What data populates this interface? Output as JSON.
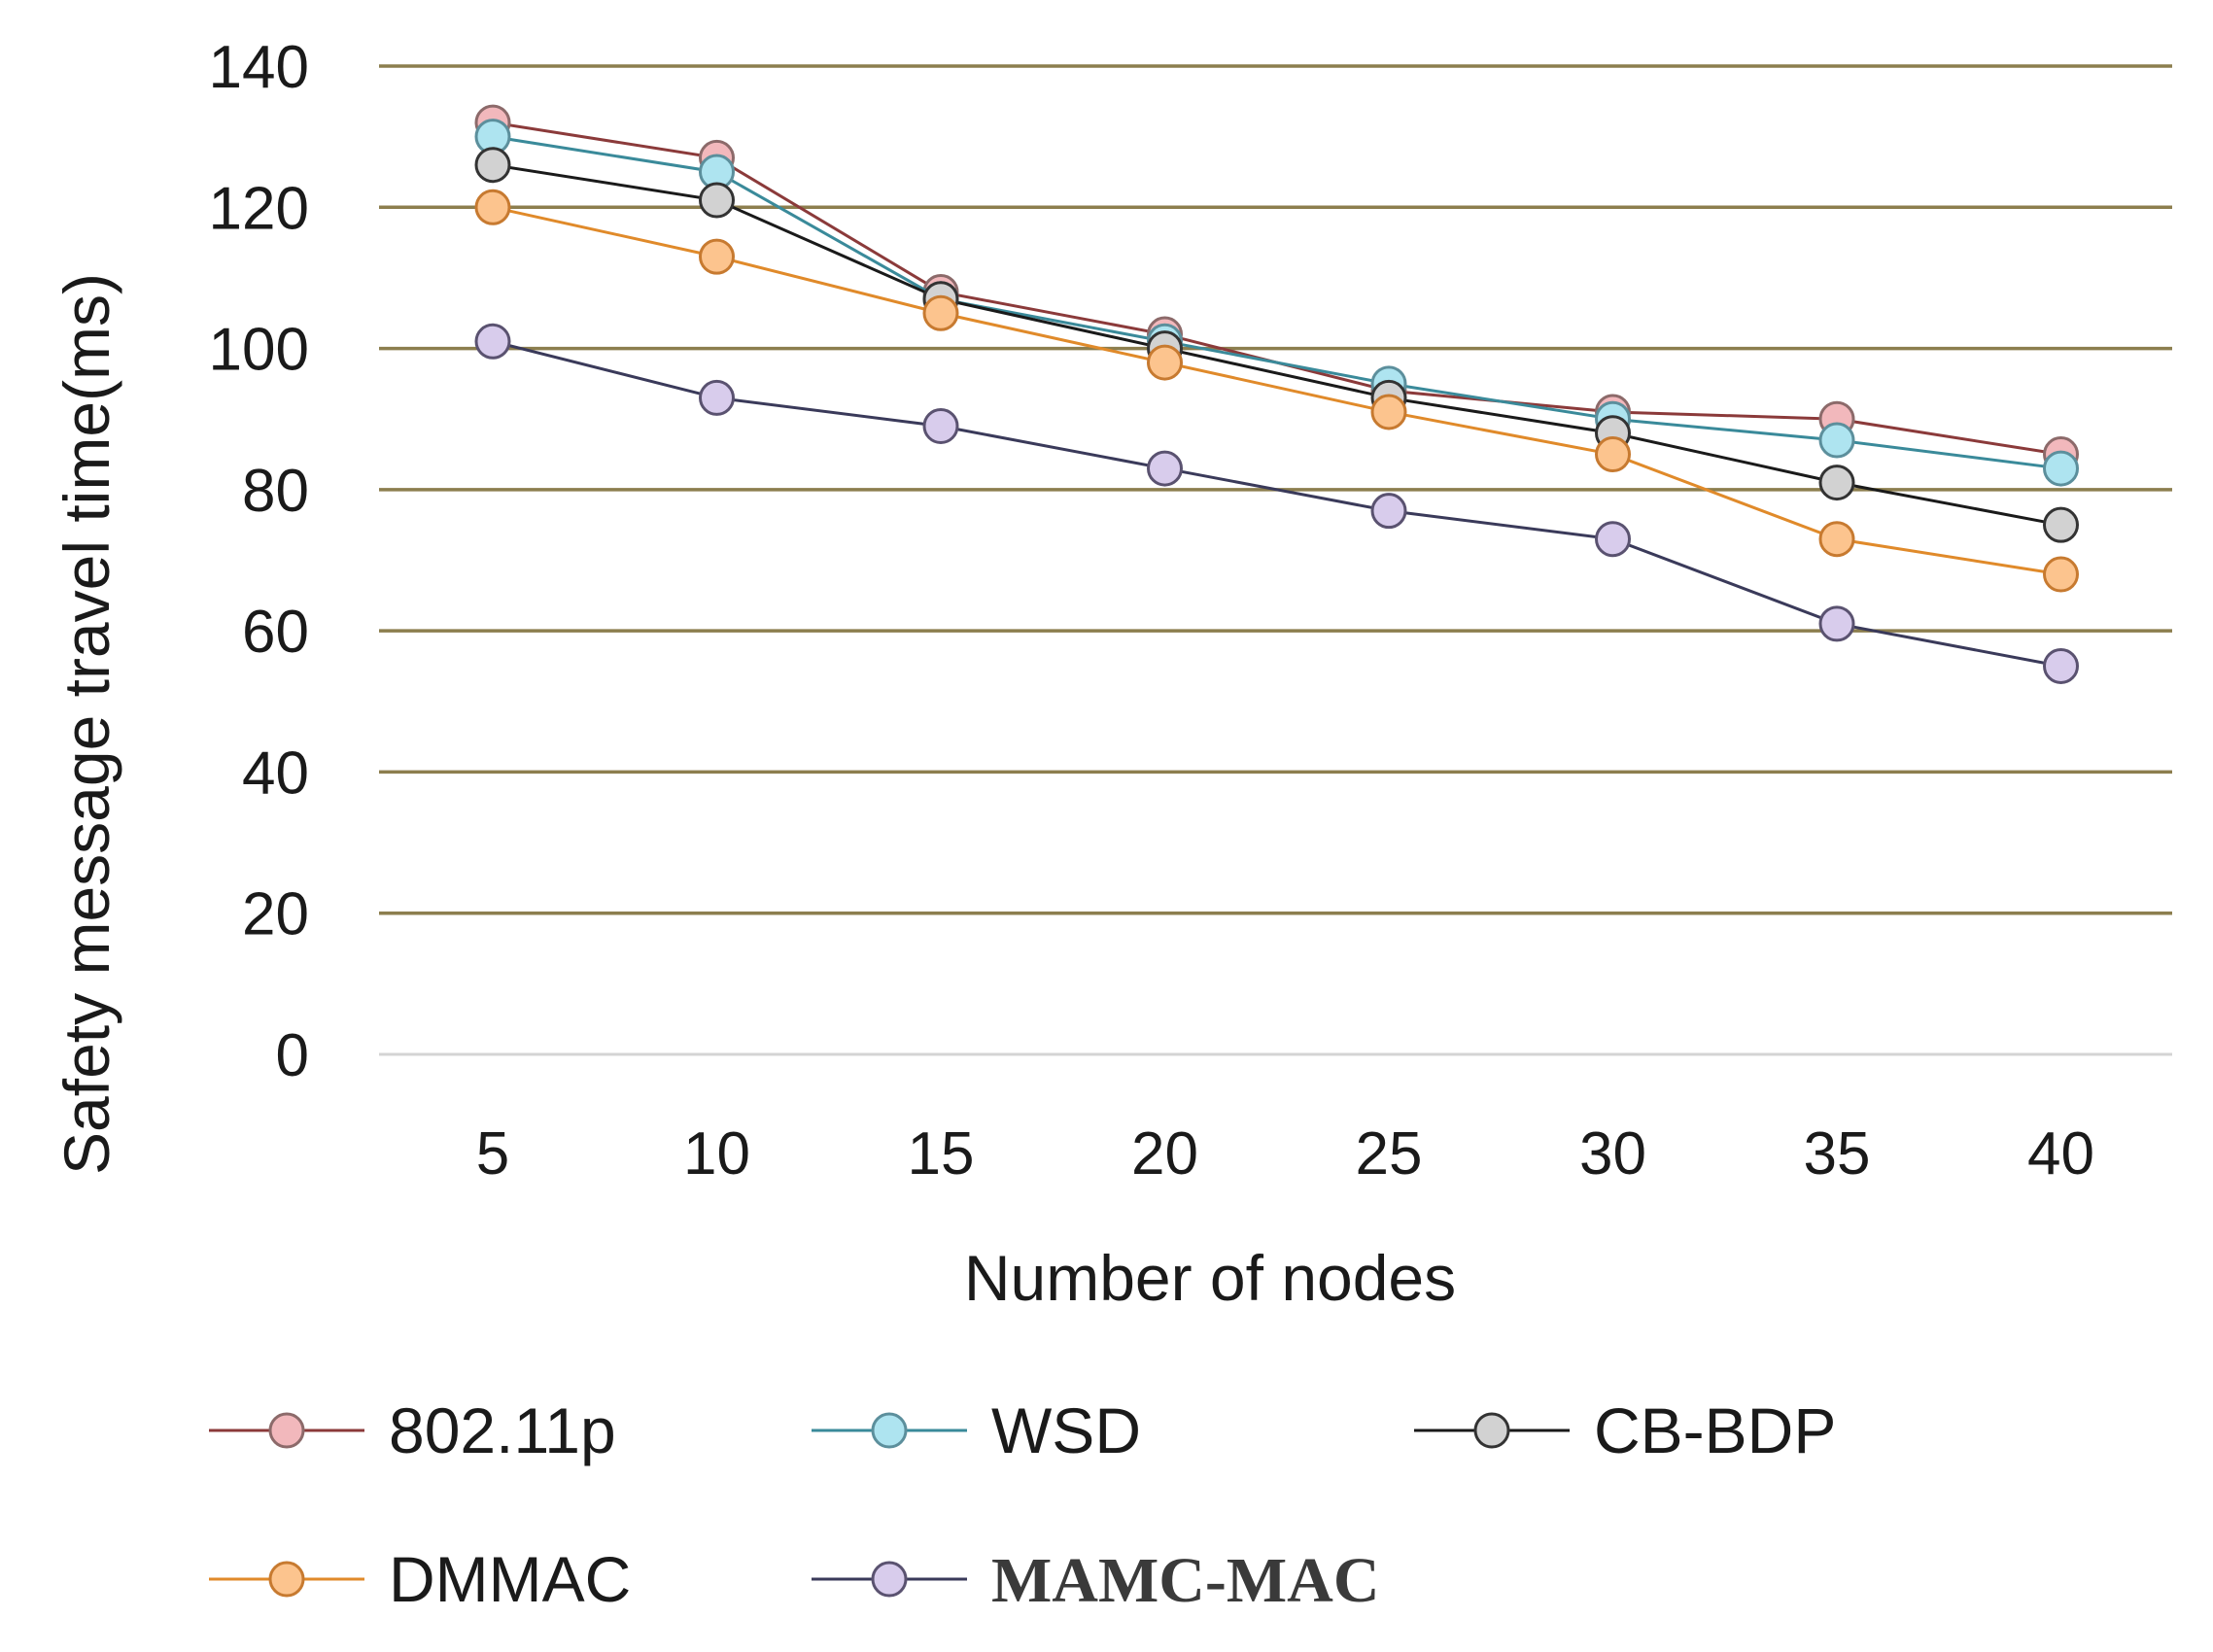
{
  "chart_data": {
    "type": "line",
    "title": "",
    "xlabel": "Number  of nodes",
    "ylabel": "Safety message travel time(ms)",
    "ylim": [
      0,
      140
    ],
    "yticks": [
      0,
      20,
      40,
      60,
      80,
      100,
      120,
      140
    ],
    "grid": true,
    "legend_position": "bottom",
    "categories": [
      "5",
      "10",
      "15",
      "20",
      "25",
      "30",
      "35",
      "40"
    ],
    "series": [
      {
        "name": "802.11p",
        "line_color": "#8b3a3a",
        "marker_fill": "#f2b8bc",
        "marker_stroke": "#8c6a6a",
        "values": [
          132,
          127,
          108,
          102,
          94,
          91,
          90,
          85
        ],
        "serif": false
      },
      {
        "name": "WSD",
        "line_color": "#3a8a9a",
        "marker_fill": "#aee4f0",
        "marker_stroke": "#5c8f9c",
        "values": [
          130,
          125,
          107,
          101,
          95,
          90,
          87,
          83
        ],
        "serif": false
      },
      {
        "name": "CB-BDP",
        "line_color": "#1a1a1a",
        "marker_fill": "#d2d2d2",
        "marker_stroke": "#333333",
        "values": [
          126,
          121,
          107,
          100,
          93,
          88,
          81,
          75
        ],
        "serif": false
      },
      {
        "name": "DMMAC",
        "line_color": "#e08a2a",
        "marker_fill": "#fcc48e",
        "marker_stroke": "#c77a30",
        "values": [
          120,
          113,
          105,
          98,
          91,
          85,
          73,
          68
        ],
        "serif": false
      },
      {
        "name": "MAMC-MAC",
        "line_color": "#3a3a5a",
        "marker_fill": "#d8ccec",
        "marker_stroke": "#5a5270",
        "values": [
          101,
          93,
          89,
          83,
          77,
          73,
          61,
          55
        ],
        "serif": true
      }
    ]
  }
}
